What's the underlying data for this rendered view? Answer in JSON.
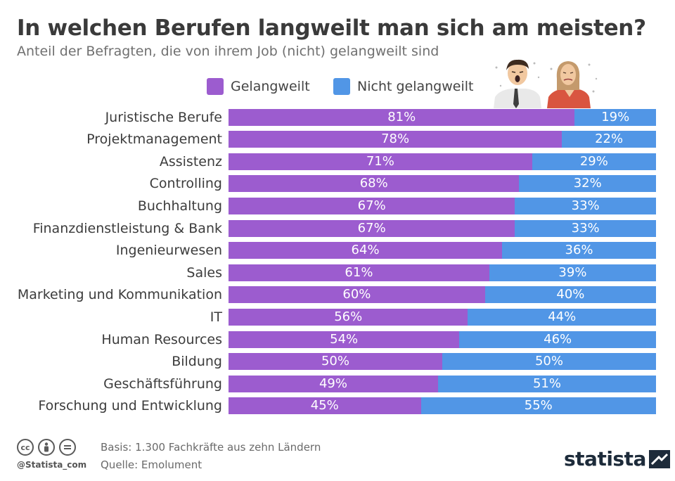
{
  "header": {
    "title": "In welchen Berufen langweilt man sich am meisten?",
    "subtitle": "Anteil der Befragten, die von ihrem Job (nicht) gelangweilt sind"
  },
  "colors": {
    "bored": "#9c5ccf",
    "not_bored": "#5196e6"
  },
  "chart_data": {
    "type": "bar",
    "orientation": "horizontal",
    "stacked": true,
    "categories": [
      "Juristische Berufe",
      "Projektmanagement",
      "Assistenz",
      "Controlling",
      "Buchhaltung",
      "Finanzdienstleistung & Bank",
      "Ingenieurwesen",
      "Sales",
      "Marketing und Kommunikation",
      "IT",
      "Human Resources",
      "Bildung",
      "Geschäftsführung",
      "Forschung und Entwicklung"
    ],
    "series": [
      {
        "name": "Gelangweilt",
        "values": [
          81,
          78,
          71,
          68,
          67,
          67,
          64,
          61,
          60,
          56,
          54,
          50,
          49,
          45
        ],
        "labels": [
          "81%",
          "78%",
          "71%",
          "68%",
          "67%",
          "67%",
          "64%",
          "61%",
          "60%",
          "56%",
          "54%",
          "50%",
          "49%",
          "45%"
        ]
      },
      {
        "name": "Nicht gelangweilt",
        "values": [
          19,
          22,
          29,
          32,
          33,
          33,
          36,
          39,
          40,
          44,
          46,
          50,
          51,
          55
        ],
        "labels": [
          "19%",
          "22%",
          "29%",
          "32%",
          "33%",
          "33%",
          "36%",
          "39%",
          "40%",
          "44%",
          "46%",
          "50%",
          "51%",
          "55%"
        ]
      }
    ],
    "xlim": [
      0,
      100
    ],
    "legend": "top"
  },
  "footer": {
    "handle": "@Statista_com",
    "basis": "Basis: 1.300 Fachkräfte aus zehn Ländern",
    "source": "Quelle: Emolument",
    "logo": "statista",
    "icons": [
      "cc-icon",
      "by-icon",
      "nd-icon"
    ]
  }
}
